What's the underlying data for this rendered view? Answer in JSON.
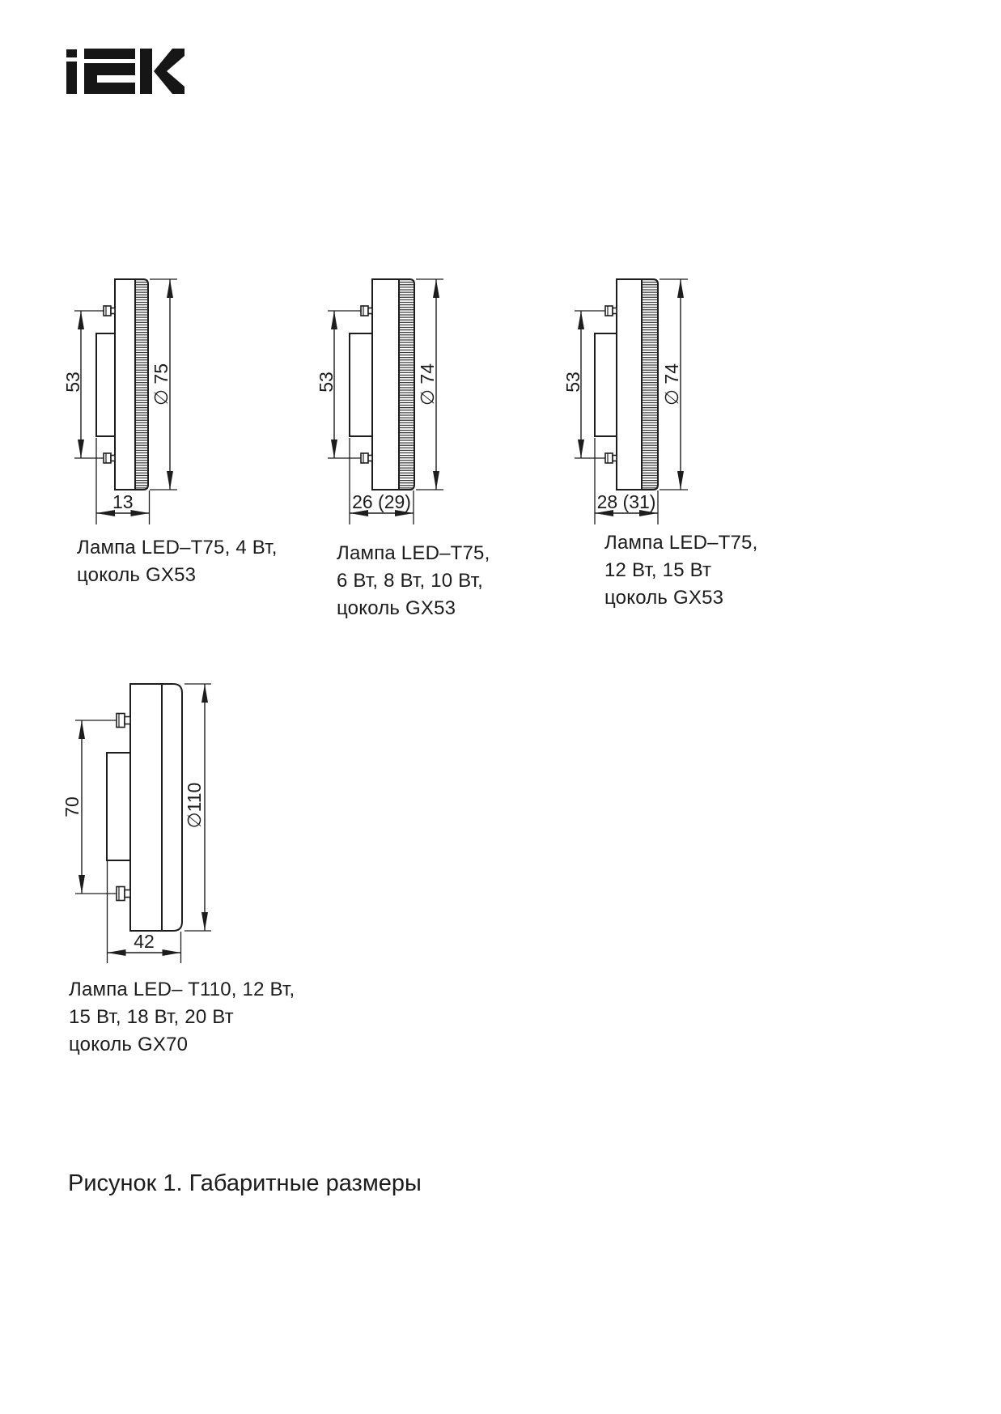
{
  "brand": "IEK",
  "figure_caption": "Рисунок 1. Габаритные размеры",
  "drawings": [
    {
      "caption_lines": [
        "Лампа LED–T75, 4 Вт,",
        "цоколь GX53"
      ],
      "dims": {
        "pin_span": "53",
        "diameter": "∅ 75",
        "depth": "13"
      }
    },
    {
      "caption_lines": [
        "Лампа LED–T75,",
        "6 Вт, 8 Вт, 10 Вт,",
        "цоколь GX53"
      ],
      "dims": {
        "pin_span": "53",
        "diameter": "∅ 74",
        "depth": "26 (29)"
      }
    },
    {
      "caption_lines": [
        "Лампа LED–T75,",
        "12 Вт, 15 Вт",
        "цоколь GX53"
      ],
      "dims": {
        "pin_span": "53",
        "diameter": "∅ 74",
        "depth": "28 (31)"
      }
    },
    {
      "caption_lines": [
        "Лампа LED– T110, 12 Вт,",
        "15 Вт, 18 Вт, 20 Вт",
        "цоколь GX70"
      ],
      "dims": {
        "pin_span": "70",
        "diameter": "∅110",
        "depth": "42"
      }
    }
  ]
}
